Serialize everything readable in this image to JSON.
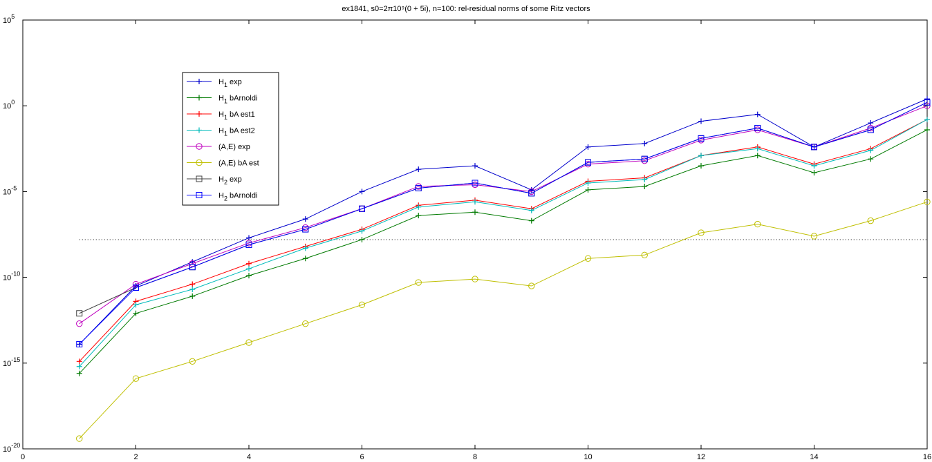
{
  "chart_data": {
    "type": "line",
    "title": "ex1841, s0=2π10⁹(0 + 5i), n=100:  rel-residual norms of some Ritz vectors",
    "xlabel": "",
    "ylabel": "",
    "xlim": [
      0,
      16
    ],
    "ylim_log10": [
      -20,
      5
    ],
    "y_scale": "log",
    "grid": false,
    "legend_position": "upper-left",
    "x_ticks": [
      "0",
      "2",
      "4",
      "6",
      "8",
      "10",
      "12",
      "14",
      "16"
    ],
    "y_ticks": [
      {
        "base": "10",
        "exp": "5"
      },
      {
        "base": "10",
        "exp": "0"
      },
      {
        "base": "10",
        "exp": "-5"
      },
      {
        "base": "10",
        "exp": "-10"
      },
      {
        "base": "10",
        "exp": "-15"
      },
      {
        "base": "10",
        "exp": "-20"
      }
    ],
    "reference_line_log10": -7.8,
    "x": [
      1,
      2,
      3,
      4,
      5,
      6,
      7,
      8,
      9,
      10,
      11,
      12,
      13,
      14,
      15,
      16
    ],
    "series": [
      {
        "name_main": "H",
        "name_sub": "1",
        "name_rest": " exp",
        "color": "#0000cc",
        "marker": "plus",
        "log10_values": [
          -13.9,
          -10.5,
          -9.1,
          -7.7,
          -6.6,
          -5.0,
          -3.7,
          -3.5,
          -4.9,
          -2.4,
          -2.2,
          -0.9,
          -0.5,
          -2.4,
          -1.0,
          0.4
        ]
      },
      {
        "name_main": "H",
        "name_sub": "1",
        "name_rest": " bArnoldi",
        "color": "#007a00",
        "marker": "plus",
        "log10_values": [
          -15.6,
          -12.1,
          -11.1,
          -9.9,
          -8.9,
          -7.8,
          -6.4,
          -6.2,
          -6.7,
          -4.9,
          -4.7,
          -3.5,
          -2.9,
          -3.9,
          -3.1,
          -1.4
        ]
      },
      {
        "name_main": "H",
        "name_sub": "1",
        "name_rest": " bA est1",
        "color": "#ff0000",
        "marker": "plus",
        "log10_values": [
          -14.9,
          -11.4,
          -10.4,
          -9.2,
          -8.2,
          -7.2,
          -5.8,
          -5.5,
          -6.0,
          -4.4,
          -4.2,
          -2.9,
          -2.4,
          -3.4,
          -2.5,
          -0.8
        ]
      },
      {
        "name_main": "H",
        "name_sub": "1",
        "name_rest": " bA est2",
        "color": "#00bbbb",
        "marker": "plus",
        "log10_values": [
          -15.2,
          -11.6,
          -10.7,
          -9.5,
          -8.3,
          -7.3,
          -5.9,
          -5.6,
          -6.1,
          -4.5,
          -4.3,
          -2.9,
          -2.5,
          -3.5,
          -2.6,
          -0.8
        ]
      },
      {
        "name_main": "(A,E) exp",
        "name_sub": "",
        "name_rest": "",
        "color": "#bf00bf",
        "marker": "circle",
        "log10_values": [
          -12.7,
          -10.4,
          -9.2,
          -8.0,
          -7.1,
          -6.0,
          -4.7,
          -4.6,
          -5.0,
          -3.4,
          -3.2,
          -2.0,
          -1.4,
          -2.4,
          -1.3,
          0.0
        ]
      },
      {
        "name_main": "(A,E)  bA est",
        "name_sub": "",
        "name_rest": "",
        "color": "#bfbf00",
        "marker": "circle",
        "log10_values": [
          -19.4,
          -15.9,
          -14.9,
          -13.8,
          -12.7,
          -11.6,
          -10.3,
          -10.1,
          -10.5,
          -8.9,
          -8.7,
          -7.4,
          -6.9,
          -7.6,
          -6.7,
          -5.6
        ]
      },
      {
        "name_main": "H",
        "name_sub": "2",
        "name_rest": " exp",
        "color": "#404040",
        "marker": "square",
        "log10_values": [
          -12.1,
          -10.6,
          -9.4,
          -8.1,
          -7.2,
          -6.0,
          -4.8,
          -4.5,
          -5.1,
          -3.3,
          -3.1,
          -1.9,
          -1.3,
          -2.4,
          -1.4,
          0.2
        ]
      },
      {
        "name_main": "H",
        "name_sub": "2",
        "name_rest": " bArnoldi",
        "color": "#0000ff",
        "marker": "square",
        "log10_values": [
          -13.9,
          -10.6,
          -9.4,
          -8.1,
          -7.2,
          -6.0,
          -4.8,
          -4.5,
          -5.1,
          -3.3,
          -3.1,
          -1.9,
          -1.3,
          -2.4,
          -1.4,
          0.2
        ]
      }
    ]
  }
}
